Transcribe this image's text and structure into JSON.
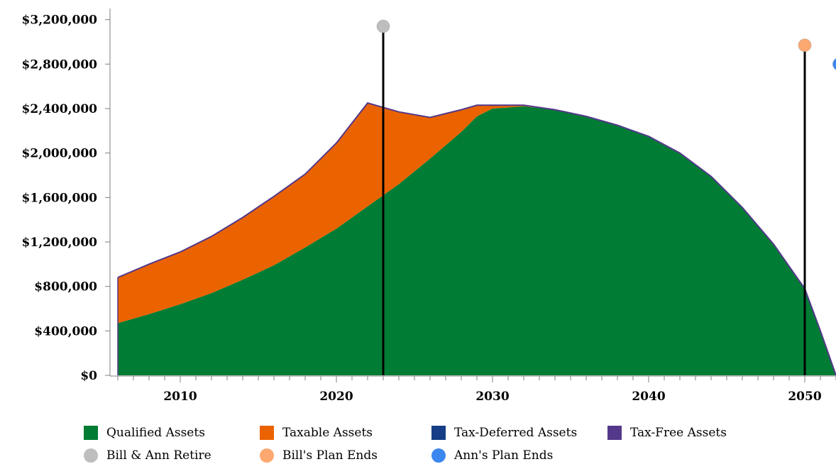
{
  "chart_data": {
    "type": "area",
    "stacked": true,
    "x": [
      2006,
      2008,
      2010,
      2012,
      2014,
      2016,
      2018,
      2020,
      2022,
      2024,
      2026,
      2028,
      2029,
      2030,
      2032,
      2034,
      2036,
      2038,
      2040,
      2042,
      2044,
      2046,
      2048,
      2050,
      2051,
      2052
    ],
    "series": [
      {
        "name": "Qualified Assets",
        "color": "#007c34",
        "values": [
          470000,
          550000,
          640000,
          740000,
          860000,
          990000,
          1150000,
          1320000,
          1520000,
          1720000,
          1950000,
          2190000,
          2330000,
          2400000,
          2420000,
          2390000,
          2330000,
          2250000,
          2150000,
          2000000,
          1790000,
          1510000,
          1180000,
          780000,
          400000,
          0
        ]
      },
      {
        "name": "Taxable Assets",
        "color": "#ea6300",
        "values": [
          410000,
          450000,
          470000,
          510000,
          560000,
          620000,
          660000,
          770000,
          930000,
          650000,
          370000,
          200000,
          100000,
          30000,
          10000,
          0,
          0,
          0,
          0,
          0,
          0,
          0,
          0,
          0,
          0,
          0
        ]
      },
      {
        "name": "Tax-Deferred Assets",
        "color": "#153e86",
        "values": [
          0,
          0,
          0,
          0,
          0,
          0,
          0,
          0,
          0,
          0,
          0,
          0,
          0,
          0,
          0,
          0,
          0,
          0,
          0,
          0,
          0,
          0,
          0,
          0,
          0,
          0
        ]
      },
      {
        "name": "Tax-Free Assets",
        "color": "#54398a",
        "values": [
          0,
          0,
          0,
          0,
          0,
          0,
          0,
          0,
          0,
          0,
          0,
          0,
          0,
          0,
          0,
          0,
          0,
          0,
          0,
          0,
          0,
          0,
          0,
          0,
          0,
          0
        ]
      }
    ],
    "events": [
      {
        "name": "Bill & Ann Retire",
        "x": 2023,
        "y": 3140000,
        "color": "#bebebe"
      },
      {
        "name": "Bill's Plan Ends",
        "x": 2050,
        "y": 2970000,
        "color": "#fca870"
      },
      {
        "name": "Ann's Plan Ends",
        "x": 2052.2,
        "y": 2800000,
        "color": "#3b87f0"
      }
    ],
    "xlim": [
      2005.5,
      2052
    ],
    "ylim": [
      0,
      3300000
    ],
    "y_ticks": [
      0,
      400000,
      800000,
      1200000,
      1600000,
      2000000,
      2400000,
      2800000,
      3200000
    ],
    "y_tick_labels": [
      "$0",
      "$400,000",
      "$800,000",
      "$1,200,000",
      "$1,600,000",
      "$2,000,000",
      "$2,400,000",
      "$2,800,000",
      "$3,200,000"
    ],
    "x_ticks": [
      2010,
      2020,
      2030,
      2040,
      2050
    ],
    "x_tick_labels": [
      "2010",
      "2020",
      "2030",
      "2040",
      "2050"
    ],
    "x_minor_step": 1,
    "grid": false,
    "legend_position": "bottom",
    "title": "",
    "xlabel": "",
    "ylabel": ""
  },
  "legend": {
    "row1": [
      {
        "label": "Qualified Assets",
        "color": "#007c34",
        "shape": "square"
      },
      {
        "label": "Taxable Assets",
        "color": "#ea6300",
        "shape": "square"
      },
      {
        "label": "Tax-Deferred Assets",
        "color": "#153e86",
        "shape": "square"
      },
      {
        "label": "Tax-Free Assets",
        "color": "#54398a",
        "shape": "square"
      }
    ],
    "row2": [
      {
        "label": "Bill & Ann Retire",
        "color": "#bebebe",
        "shape": "circle"
      },
      {
        "label": "Bill's Plan Ends",
        "color": "#fca870",
        "shape": "circle"
      },
      {
        "label": "Ann's Plan Ends",
        "color": "#3b87f0",
        "shape": "circle"
      }
    ]
  }
}
